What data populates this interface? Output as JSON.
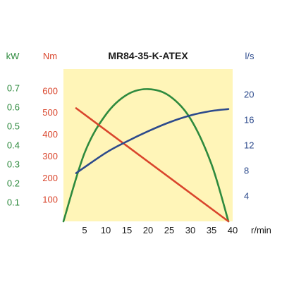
{
  "chart_data": {
    "type": "line",
    "title": "MR84-35-K-ATEX",
    "colors": {
      "plot_bg": "#fff5b8",
      "power": "#2e8a3e",
      "torque": "#d9452c",
      "flow": "#2c4a8c",
      "axis_text": "#1a1a1a"
    },
    "x_axis": {
      "unit_label": "r/min",
      "range": [
        0,
        40
      ],
      "ticks": [
        "5",
        "10",
        "15",
        "20",
        "25",
        "30",
        "35",
        "40"
      ]
    },
    "y_axes": {
      "kw": {
        "unit_label": "kW",
        "range": [
          0,
          0.8
        ],
        "ticks": [
          "0.1",
          "0.2",
          "0.3",
          "0.4",
          "0.5",
          "0.6",
          "0.7"
        ]
      },
      "nm": {
        "unit_label": "Nm",
        "range": [
          0,
          700
        ],
        "ticks": [
          "100",
          "200",
          "300",
          "400",
          "500",
          "600"
        ]
      },
      "ls": {
        "unit_label": "l/s",
        "range": [
          0,
          24
        ],
        "ticks": [
          "4",
          "8",
          "12",
          "16",
          "20"
        ]
      }
    },
    "series": [
      {
        "key": "power",
        "axis": "kw",
        "x": [
          0,
          5,
          10,
          15,
          20,
          25,
          30,
          35,
          39
        ],
        "y": [
          0,
          0.36,
          0.56,
          0.665,
          0.695,
          0.66,
          0.54,
          0.3,
          0
        ]
      },
      {
        "key": "torque",
        "axis": "nm",
        "x": [
          3,
          39
        ],
        "y": [
          520,
          0
        ]
      },
      {
        "key": "flow",
        "axis": "ls",
        "x": [
          3,
          10,
          15,
          20,
          25,
          30,
          35,
          39
        ],
        "y": [
          7.6,
          10.8,
          12.6,
          14.2,
          15.6,
          16.7,
          17.4,
          17.7
        ]
      }
    ]
  }
}
